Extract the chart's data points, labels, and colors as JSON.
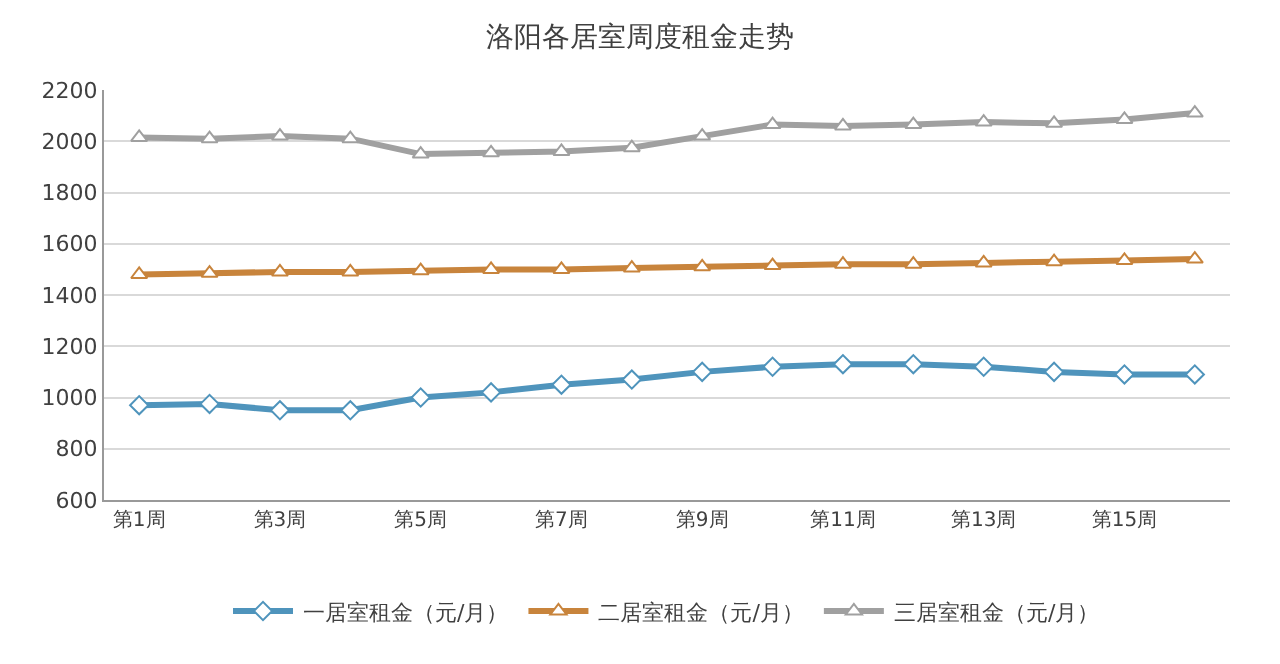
{
  "chart_data": {
    "type": "line",
    "title": "洛阳各居室周度租金走势",
    "categories": [
      "第1周",
      null,
      "第3周",
      null,
      "第5周",
      null,
      "第7周",
      null,
      "第9周",
      null,
      "第11周",
      null,
      "第13周",
      null,
      "第15周",
      null
    ],
    "series": [
      {
        "name": "一居室租金（元/月）",
        "color": "#4f94bc",
        "marker": "diamond",
        "values": [
          970,
          975,
          950,
          950,
          1000,
          1020,
          1050,
          1070,
          1100,
          1120,
          1130,
          1130,
          1120,
          1100,
          1090,
          1090
        ]
      },
      {
        "name": "二居室租金（元/月）",
        "color": "#c8843c",
        "marker": "triangle",
        "values": [
          1480,
          1485,
          1490,
          1490,
          1495,
          1500,
          1500,
          1505,
          1510,
          1515,
          1520,
          1520,
          1525,
          1530,
          1535,
          1540
        ]
      },
      {
        "name": "三居室租金（元/月）",
        "color": "#a0a0a0",
        "marker": "triangle",
        "values": [
          2015,
          2010,
          2020,
          2010,
          1950,
          1955,
          1960,
          1975,
          2020,
          2065,
          2060,
          2065,
          2075,
          2070,
          2085,
          2110
        ]
      }
    ],
    "ylim": [
      600,
      2200
    ],
    "yticks": [
      600,
      800,
      1000,
      1200,
      1400,
      1600,
      1800,
      2000,
      2200
    ],
    "grid": "y",
    "legend": "bottom",
    "line_style": "solid"
  }
}
